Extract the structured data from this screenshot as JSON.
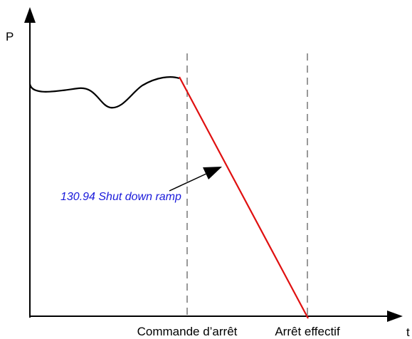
{
  "y_axis_label": "P",
  "x_axis_label": "t",
  "annotation": "130.94 Shut down ramp",
  "markers": [
    {
      "label": "Commande d’arrêt"
    },
    {
      "label": "Arrêt effectif"
    }
  ]
}
